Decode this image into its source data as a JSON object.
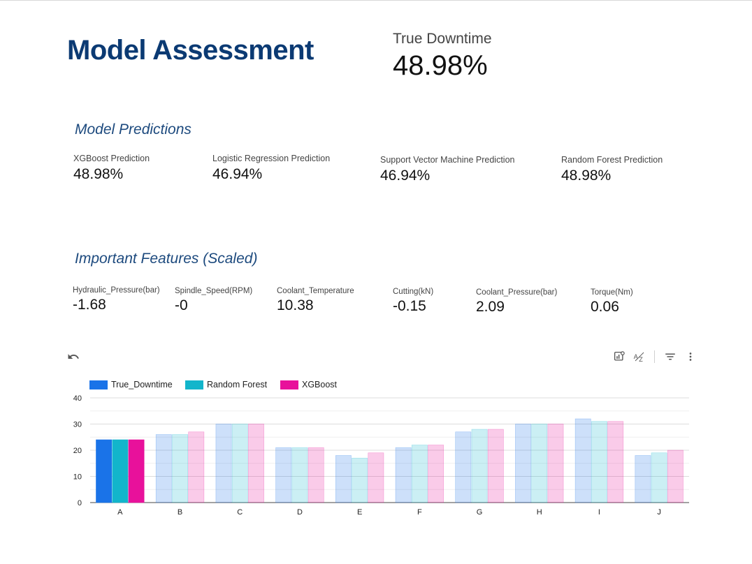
{
  "header": {
    "title": "Model Assessment",
    "true_downtime_label": "True Downtime",
    "true_downtime_value": "48.98%"
  },
  "predictions": {
    "section_title": "Model Predictions",
    "items": [
      {
        "label": "XGBoost Prediction",
        "value": "48.98%"
      },
      {
        "label": "Logistic Regression Prediction",
        "value": "46.94%"
      },
      {
        "label": "Support Vector Machine Prediction",
        "value": "46.94%"
      },
      {
        "label": "Random Forest Prediction",
        "value": "48.98%"
      }
    ]
  },
  "features": {
    "section_title": "Important Features (Scaled)",
    "items": [
      {
        "label": "Hydraulic_Pressure(bar)",
        "value": "-1.68"
      },
      {
        "label": "Spindle_Speed(RPM)",
        "value": "-0"
      },
      {
        "label": "Coolant_Temperature",
        "value": "10.38"
      },
      {
        "label": "Cutting(kN)",
        "value": "-0.15"
      },
      {
        "label": "Coolant_Pressure(bar)",
        "value": "2.09"
      },
      {
        "label": "Torque(Nm)",
        "value": "0.06"
      }
    ]
  },
  "toolbar": {
    "icons": [
      "undo-icon",
      "chart-settings-icon",
      "sort-az-icon",
      "filter-icon",
      "more-vert-icon"
    ]
  },
  "chart_data": {
    "type": "bar",
    "categories": [
      "A",
      "B",
      "C",
      "D",
      "E",
      "F",
      "G",
      "H",
      "I",
      "J"
    ],
    "series": [
      {
        "name": "True_Downtime",
        "color": "#1a73e8",
        "values": [
          24,
          26,
          30,
          21,
          18,
          21,
          27,
          30,
          32,
          18
        ]
      },
      {
        "name": "Random Forest",
        "color": "#12b5cb",
        "values": [
          24,
          26,
          30,
          21,
          17,
          22,
          28,
          30,
          31,
          19
        ]
      },
      {
        "name": "XGBoost",
        "color": "#e8119b",
        "values": [
          24,
          27,
          30,
          21,
          19,
          22,
          28,
          30,
          31,
          20
        ]
      }
    ],
    "highlighted_category": "A",
    "yticks": [
      0,
      10,
      20,
      30,
      40
    ],
    "ylim": [
      0,
      40
    ],
    "grid": true,
    "legend_position": "top-left",
    "title": "",
    "xlabel": "",
    "ylabel": ""
  }
}
